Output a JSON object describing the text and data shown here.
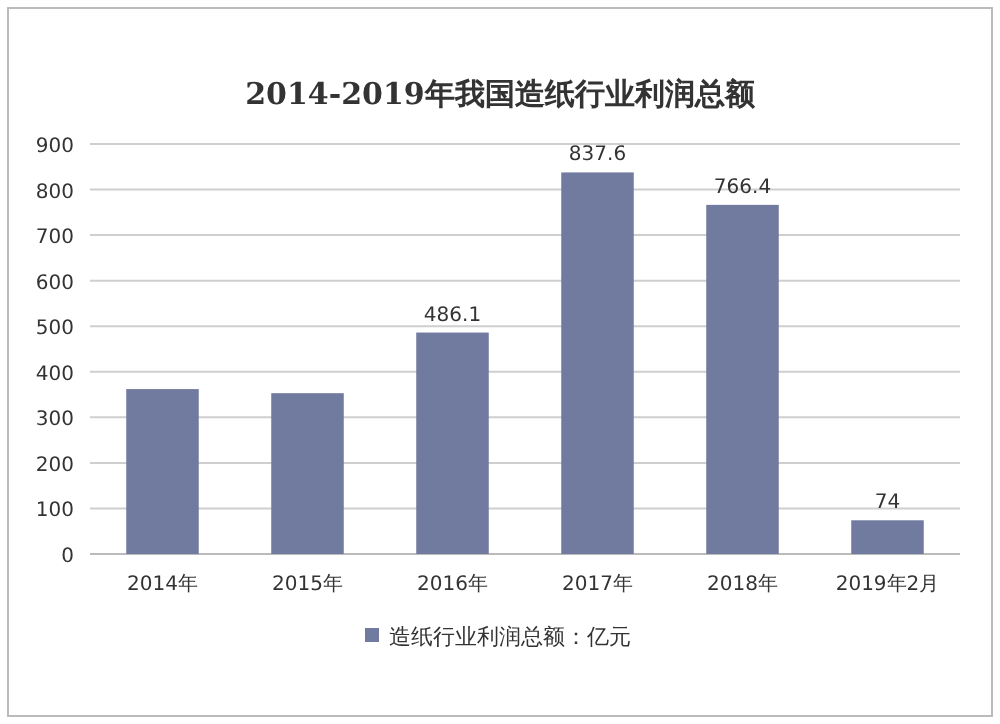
{
  "chart_data": {
    "type": "bar",
    "title": "2014-2019年我国造纸行业利润总额",
    "categories": [
      "2014年",
      "2015年",
      "2016年",
      "2017年",
      "2018年",
      "2019年2月"
    ],
    "series": [
      {
        "name": "造纸行业利润总额：亿元",
        "color": "#717a9f",
        "values": [
          362,
          353,
          486.1,
          837.6,
          766.4,
          74
        ],
        "value_labels": [
          null,
          null,
          "486.1",
          "837.6",
          "766.4",
          "74"
        ]
      }
    ],
    "ylim": [
      0,
      900
    ],
    "yticks": [
      0,
      100,
      200,
      300,
      400,
      500,
      600,
      700,
      800,
      900
    ],
    "grid": "y",
    "legend": "bottom"
  }
}
